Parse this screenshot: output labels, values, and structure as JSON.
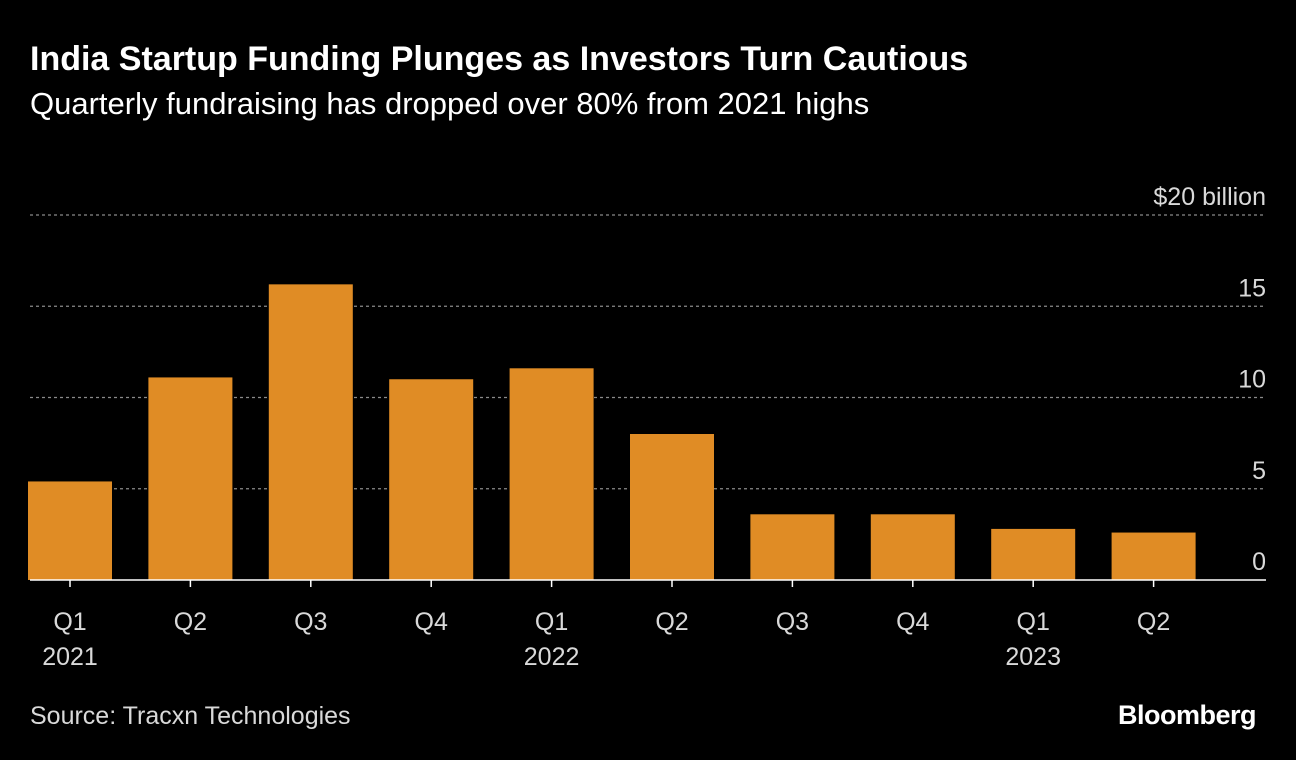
{
  "header": {
    "title": "India Startup Funding Plunges as Investors Turn Cautious",
    "subtitle": "Quarterly fundraising has dropped over 80% from 2021 highs"
  },
  "footer": {
    "source": "Source: Tracxn Technologies",
    "brand": "Bloomberg"
  },
  "colors": {
    "bar": "#e08c25",
    "background": "#000000",
    "gridline": "#8a8a8a",
    "axis": "#ffffff",
    "text": "#ffffff",
    "muted_text": "#d9d9d9"
  },
  "chart_data": {
    "type": "bar",
    "title": "India Startup Funding Plunges as Investors Turn Cautious",
    "subtitle": "Quarterly fundraising has dropped over 80% from 2021 highs",
    "categories": [
      "Q1",
      "Q2",
      "Q3",
      "Q4",
      "Q1",
      "Q2",
      "Q3",
      "Q4",
      "Q1",
      "Q2"
    ],
    "year_labels": [
      "2021",
      "",
      "",
      "",
      "2022",
      "",
      "",
      "",
      "2023",
      ""
    ],
    "values": [
      5.4,
      11.1,
      16.2,
      11.0,
      11.6,
      8.0,
      3.6,
      3.6,
      2.8,
      2.6
    ],
    "ylim": [
      0,
      20
    ],
    "yticks": [
      0,
      5,
      10,
      15,
      20
    ],
    "ytick_labels": [
      "0",
      "5",
      "10",
      "15",
      "$20 billion"
    ],
    "y_axis_position": "right",
    "grid": true,
    "legend": "none",
    "xlabel": "",
    "ylabel": ""
  }
}
